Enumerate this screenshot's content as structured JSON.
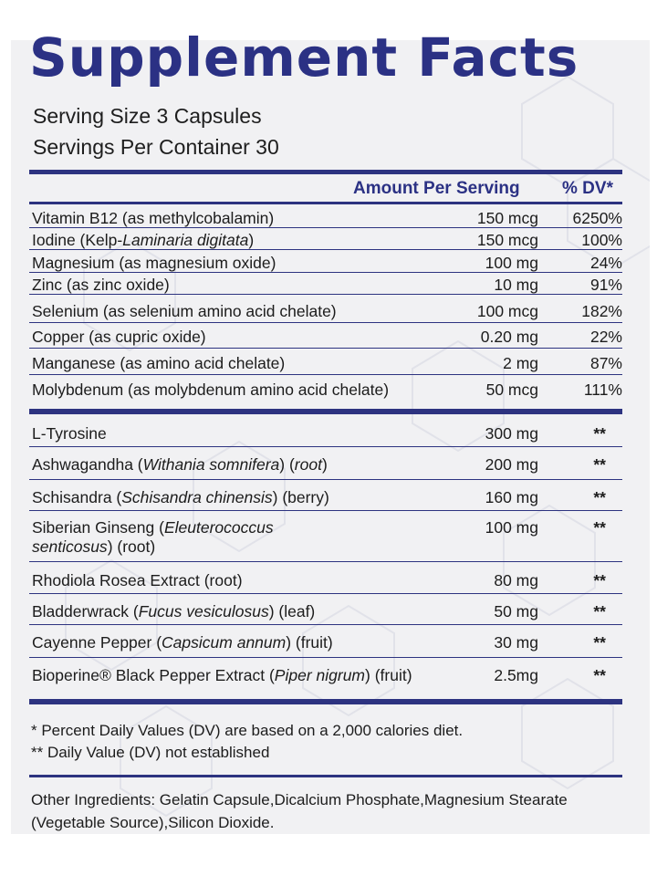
{
  "title": "Supplement Facts",
  "serving_size": "Serving Size 3 Capsules",
  "servings_per_container": "Servings Per Container 30",
  "header": {
    "amount": "Amount Per Serving",
    "dv": "% DV*"
  },
  "vitamins_minerals": [
    {
      "name": [
        {
          "t": "Vitamin B12 (as methylcobalamin)"
        }
      ],
      "amount": "150 mcg",
      "dv": "6250%"
    },
    {
      "name": [
        {
          "t": "Iodine (Kelp-"
        },
        {
          "t": "Laminaria digitata",
          "i": true
        },
        {
          "t": ")"
        }
      ],
      "amount": "150 mcg",
      "dv": "100%"
    },
    {
      "name": [
        {
          "t": "Magnesium (as magnesium oxide)"
        }
      ],
      "amount": "100 mg",
      "dv": "24%"
    },
    {
      "name": [
        {
          "t": "Zinc (as zinc oxide)"
        }
      ],
      "amount": "10 mg",
      "dv": "91%"
    },
    {
      "name": [
        {
          "t": "Selenium (as selenium amino acid chelate)"
        }
      ],
      "amount": "100 mcg",
      "dv": "182%"
    },
    {
      "name": [
        {
          "t": "Copper (as cupric oxide)"
        }
      ],
      "amount": "0.20 mg",
      "dv": "22%"
    },
    {
      "name": [
        {
          "t": "Manganese (as amino acid chelate)"
        }
      ],
      "amount": "2 mg",
      "dv": "87%"
    },
    {
      "name": [
        {
          "t": "Molybdenum (as molybdenum amino acid chelate)"
        }
      ],
      "amount": "50 mcg",
      "dv": "111%"
    }
  ],
  "other_actives": [
    {
      "name": [
        {
          "t": "L-Tyrosine"
        }
      ],
      "amount": "300 mg",
      "dv": "**"
    },
    {
      "name": [
        {
          "t": "Ashwagandha ("
        },
        {
          "t": "Withania somnifera",
          "i": true
        },
        {
          "t": ") ("
        },
        {
          "t": "root",
          "i": true
        },
        {
          "t": ")"
        }
      ],
      "amount": "200 mg",
      "dv": "**"
    },
    {
      "name": [
        {
          "t": "Schisandra ("
        },
        {
          "t": "Schisandra chinensis",
          "i": true
        },
        {
          "t": ") (berry)"
        }
      ],
      "amount": "160 mg",
      "dv": "**"
    },
    {
      "name": [
        {
          "t": "Siberian Ginseng  ("
        },
        {
          "t": "Eleuterococcus senticosus",
          "i": true
        },
        {
          "t": ") (root)"
        }
      ],
      "amount": "100 mg",
      "dv": "**"
    },
    {
      "name": [
        {
          "t": "Rhodiola Rosea Extract (root)"
        }
      ],
      "amount": "80 mg",
      "dv": "**"
    },
    {
      "name": [
        {
          "t": "Bladderwrack ("
        },
        {
          "t": "Fucus vesiculosus",
          "i": true
        },
        {
          "t": ") (leaf)"
        }
      ],
      "amount": "50 mg",
      "dv": "**"
    },
    {
      "name": [
        {
          "t": "Cayenne Pepper  ("
        },
        {
          "t": "Capsicum annum",
          "i": true
        },
        {
          "t": ") (fruit)"
        }
      ],
      "amount": "30 mg",
      "dv": "**"
    },
    {
      "name": [
        {
          "t": "Bioperine® Black Pepper Extract ("
        },
        {
          "t": "Piper nigrum",
          "i": true
        },
        {
          "t": ") (fruit)"
        }
      ],
      "amount": "2.5mg",
      "dv": "**"
    }
  ],
  "footnotes": {
    "dv_basis": "* Percent Daily Values (DV) are based on a 2,000 calories diet.",
    "dv_not_established": "** Daily Value (DV) not established"
  },
  "other_ingredients": "Other Ingredients: Gelatin Capsule,Dicalcium Phosphate,Magnesium Stearate (Vegetable Source),Silicon Dioxide.",
  "colors": {
    "brand_navy": "#2b3184",
    "panel_bg": "#f1f1f3",
    "hex_pattern": "#e2e3ea"
  }
}
